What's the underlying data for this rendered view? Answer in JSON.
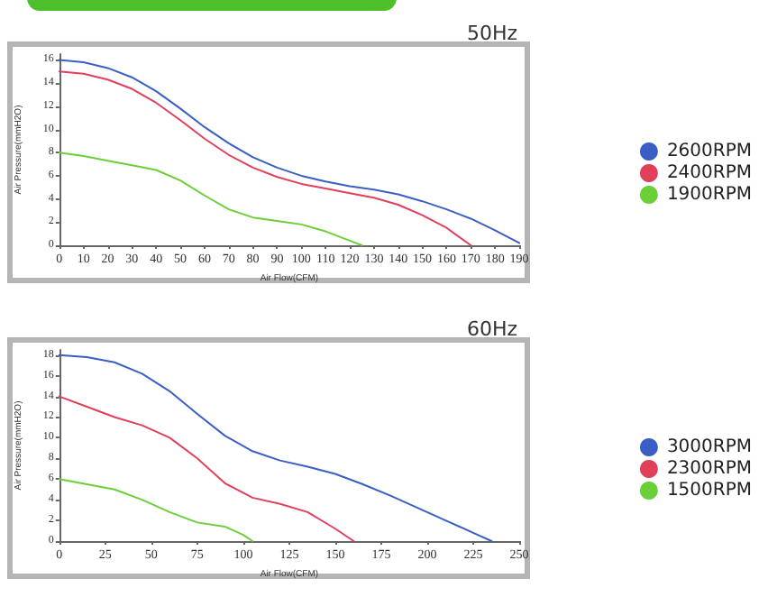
{
  "chart_data": [
    {
      "type": "line",
      "title": "50Hz",
      "xlabel": "Air Flow(CFM)",
      "ylabel": "Air Pressure(mmH2O)",
      "xlim": [
        0,
        190
      ],
      "xticks": [
        0,
        10,
        20,
        30,
        40,
        50,
        60,
        70,
        80,
        90,
        100,
        110,
        120,
        130,
        140,
        150,
        160,
        170,
        180,
        190
      ],
      "ylim": [
        0,
        16.5
      ],
      "yticks": [
        0,
        2,
        4,
        6,
        8,
        10,
        12,
        14,
        16
      ],
      "grid": false,
      "legend": "right",
      "marker": "none",
      "line_style": "solid",
      "series": [
        {
          "name": "2600RPM",
          "color": "#3a5fc4",
          "x": [
            0,
            10,
            20,
            30,
            40,
            50,
            60,
            70,
            80,
            90,
            100,
            110,
            120,
            130,
            140,
            150,
            160,
            170,
            180,
            190
          ],
          "values": [
            16,
            15.8,
            15.3,
            14.5,
            13.3,
            11.8,
            10.2,
            8.8,
            7.6,
            6.7,
            6,
            5.5,
            5.1,
            4.8,
            4.4,
            3.8,
            3.1,
            2.3,
            1.3,
            0.2
          ]
        },
        {
          "name": "2400RPM",
          "color": "#e0405a",
          "x": [
            0,
            10,
            20,
            30,
            40,
            50,
            60,
            70,
            80,
            90,
            100,
            110,
            120,
            130,
            140,
            150,
            160,
            170
          ],
          "values": [
            15,
            14.8,
            14.3,
            13.5,
            12.3,
            10.8,
            9.2,
            7.8,
            6.7,
            5.9,
            5.3,
            4.9,
            4.5,
            4.1,
            3.5,
            2.6,
            1.5,
            0
          ]
        },
        {
          "name": "1900RPM",
          "color": "#6ccf3a",
          "x": [
            0,
            10,
            20,
            30,
            40,
            50,
            60,
            70,
            80,
            90,
            100,
            110,
            120,
            125
          ],
          "values": [
            8,
            7.7,
            7.3,
            6.9,
            6.5,
            5.6,
            4.3,
            3.1,
            2.4,
            2.1,
            1.8,
            1.2,
            0.4,
            0
          ]
        }
      ]
    },
    {
      "type": "line",
      "title": "60Hz",
      "xlabel": "Air Flow(CFM)",
      "ylabel": "Air Pressure(mmH2O)",
      "xlim": [
        0,
        250
      ],
      "xticks": [
        0,
        25,
        50,
        75,
        100,
        125,
        150,
        175,
        200,
        225,
        250
      ],
      "ylim": [
        0,
        18.5
      ],
      "yticks": [
        0,
        2,
        4,
        6,
        8,
        10,
        12,
        14,
        16,
        18
      ],
      "grid": false,
      "legend": "right",
      "marker": "none",
      "line_style": "solid",
      "series": [
        {
          "name": "3000RPM",
          "color": "#3a5fc4",
          "x": [
            0,
            15,
            30,
            45,
            60,
            75,
            90,
            105,
            120,
            135,
            150,
            165,
            180,
            195,
            210,
            225,
            235
          ],
          "values": [
            18,
            17.8,
            17.3,
            16.2,
            14.5,
            12.3,
            10.2,
            8.7,
            7.8,
            7.2,
            6.5,
            5.5,
            4.4,
            3.2,
            2,
            0.8,
            0
          ]
        },
        {
          "name": "2300RPM",
          "color": "#e0405a",
          "x": [
            0,
            15,
            30,
            45,
            60,
            75,
            90,
            105,
            120,
            135,
            150,
            160
          ],
          "values": [
            14,
            13,
            12,
            11.2,
            10,
            8,
            5.6,
            4.2,
            3.6,
            2.8,
            1.2,
            0
          ]
        },
        {
          "name": "1500RPM",
          "color": "#6ccf3a",
          "x": [
            0,
            15,
            30,
            45,
            60,
            75,
            90,
            100,
            105
          ],
          "values": [
            6,
            5.5,
            5,
            4,
            2.8,
            1.8,
            1.4,
            0.6,
            0
          ]
        }
      ]
    }
  ]
}
